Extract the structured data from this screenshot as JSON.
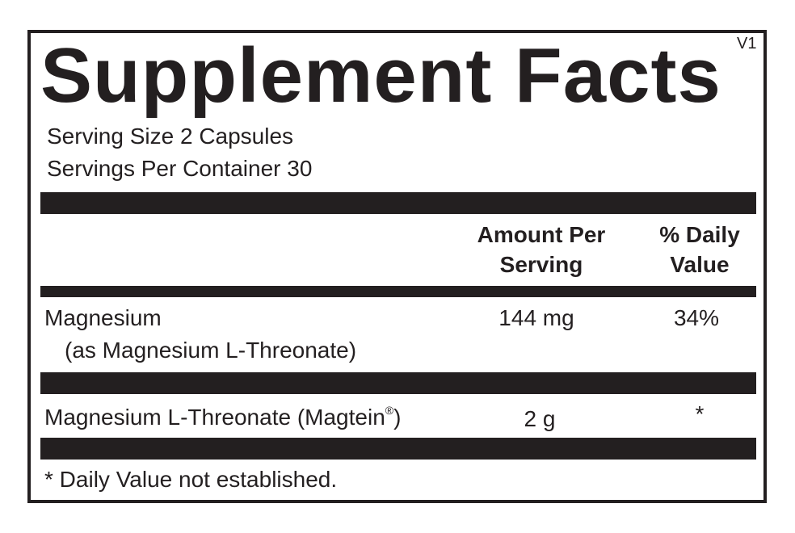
{
  "title": "Supplement Facts",
  "version": "V1",
  "serving_size": "Serving Size 2 Capsules",
  "servings_per_container": "Servings Per Container 30",
  "headers": {
    "amount_line1": "Amount Per",
    "amount_line2": "Serving",
    "dv_line1": "% Daily",
    "dv_line2": "Value"
  },
  "rows": [
    {
      "name": "Magnesium",
      "sub": "(as Magnesium L-Threonate)",
      "amount": "144 mg",
      "dv": "34%"
    },
    {
      "name": "Magnesium L-Threonate (Magtein",
      "mark": "®",
      "name_end": ")",
      "amount": "2 g",
      "dv": "*"
    }
  ],
  "footnote": "* Daily Value not established.",
  "colors": {
    "ink": "#231f20",
    "background": "#ffffff"
  }
}
